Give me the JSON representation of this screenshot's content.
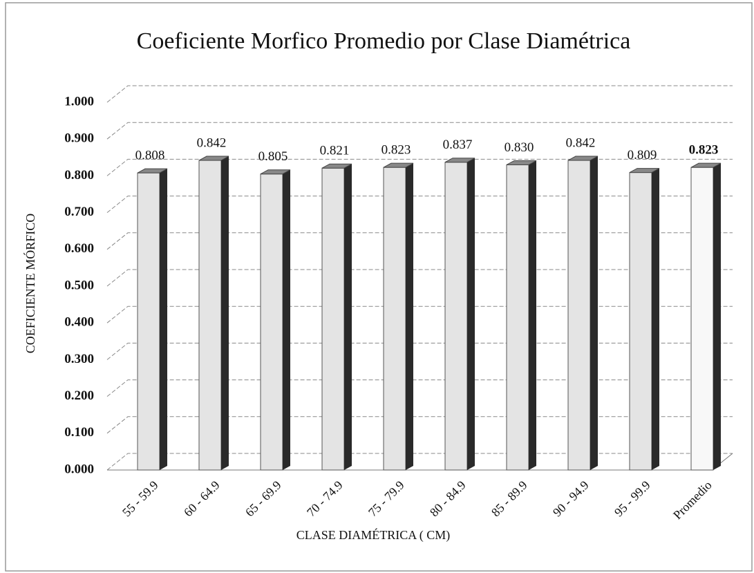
{
  "chart_data": {
    "type": "bar3d",
    "title": "Coeficiente Morfico Promedio por Clase Diamétrica",
    "x_label": "CLASE DIAMÉTRICA ( CM)",
    "y_label": "COEFICIENTE MÓRFICO",
    "categories": [
      "55 - 59.9",
      "60 - 64.9",
      "65 - 69.9",
      "70 - 74.9",
      "75 - 79.9",
      "80 - 84.9",
      "85 - 89.9",
      "90 - 94.9",
      "95 - 99.9",
      "Promedio"
    ],
    "values": [
      0.808,
      0.842,
      0.805,
      0.821,
      0.823,
      0.837,
      0.83,
      0.842,
      0.809,
      0.823
    ],
    "value_labels": [
      "0.808",
      "0.842",
      "0.805",
      "0.821",
      "0.823",
      "0.837",
      "0.830",
      "0.842",
      "0.809",
      "0.823"
    ],
    "colors": [
      "#e4e4e4",
      "#e4e4e4",
      "#e4e4e4",
      "#e4e4e4",
      "#e4e4e4",
      "#e4e4e4",
      "#e4e4e4",
      "#e4e4e4",
      "#e4e4e4",
      "#f8f8f8"
    ],
    "side_color": "#2a2a2a",
    "ylim": [
      0,
      1
    ],
    "yticks": [
      {
        "value": 0,
        "label": "0.000"
      },
      {
        "value": 0.1,
        "label": "0.100"
      },
      {
        "value": 0.2,
        "label": "0.200"
      },
      {
        "value": 0.3,
        "label": "0.300"
      },
      {
        "value": 0.4,
        "label": "0.400"
      },
      {
        "value": 0.5,
        "label": "0.500"
      },
      {
        "value": 0.6,
        "label": "0.600"
      },
      {
        "value": 0.7,
        "label": "0.700"
      },
      {
        "value": 0.8,
        "label": "0.800"
      },
      {
        "value": 0.9,
        "label": "0.900"
      },
      {
        "value": 1,
        "label": "1.000"
      }
    ],
    "grid": true
  }
}
